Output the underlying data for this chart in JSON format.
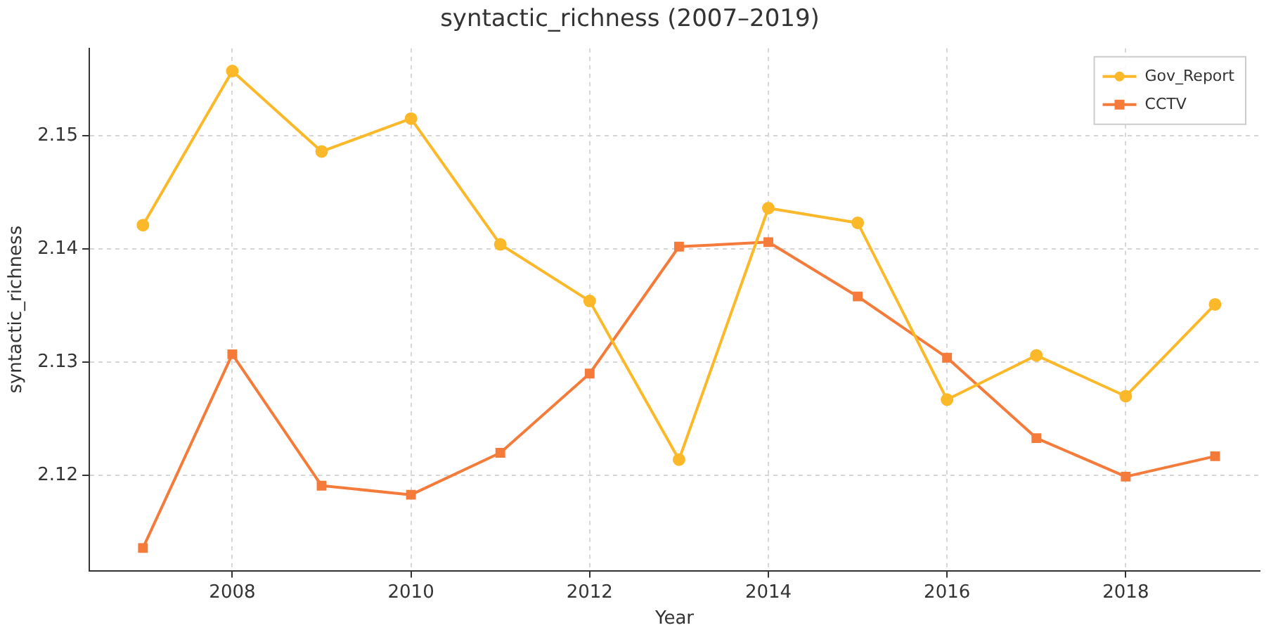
{
  "chart_data": {
    "type": "line",
    "title": "syntactic_richness (2007–2019)",
    "xlabel": "Year",
    "ylabel": "syntactic_richness",
    "x": [
      2007,
      2008,
      2009,
      2010,
      2011,
      2012,
      2013,
      2014,
      2015,
      2016,
      2017,
      2018,
      2019
    ],
    "series": [
      {
        "name": "Gov_Report",
        "color": "#fbb829",
        "marker": "circle",
        "values": [
          2.1421,
          2.1557,
          2.1486,
          2.1515,
          2.1404,
          2.1354,
          2.1214,
          2.1436,
          2.1423,
          2.1267,
          2.1306,
          2.127,
          2.1351
        ]
      },
      {
        "name": "CCTV",
        "color": "#f47b3a",
        "marker": "square",
        "values": [
          2.1136,
          2.1307,
          2.1191,
          2.1183,
          2.122,
          2.129,
          2.1402,
          2.1406,
          2.1358,
          2.1304,
          2.1233,
          2.1199,
          2.1217
        ]
      }
    ],
    "xlim": [
      2006.4,
      2019.5
    ],
    "xticks": [
      2008,
      2010,
      2012,
      2014,
      2016,
      2018
    ],
    "ylim": [
      2.1116,
      2.1577
    ],
    "yticks": [
      2.12,
      2.13,
      2.14,
      2.15
    ],
    "grid": true,
    "legend": "top right",
    "line_style": "solid"
  }
}
